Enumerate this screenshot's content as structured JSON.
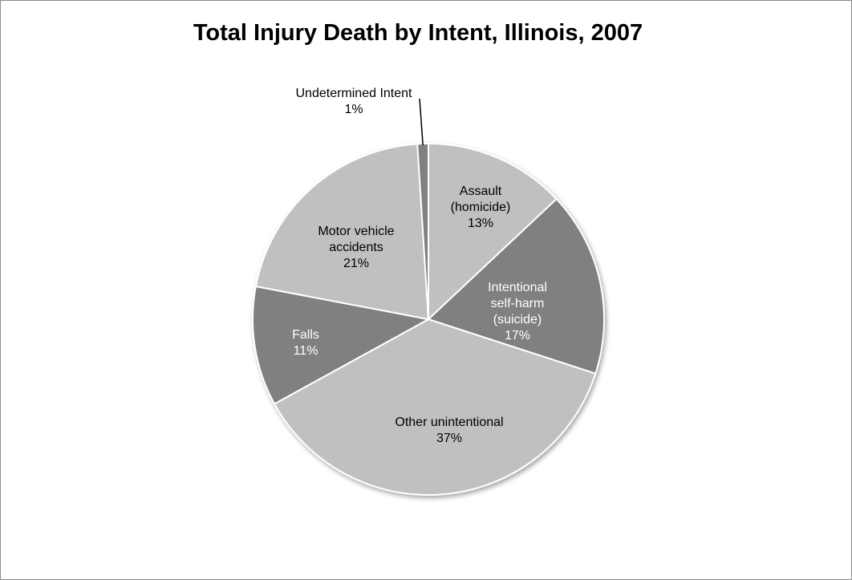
{
  "chart_data": {
    "type": "pie",
    "title": "Total Injury Death by Intent, Illinois, 2007",
    "slices": [
      {
        "label": "Assault (homicide)",
        "percent_label": "13%",
        "value": 13,
        "color": "#c0c0c0",
        "label_color": "#000000"
      },
      {
        "label": "Intentional self-harm (suicide)",
        "percent_label": "17%",
        "value": 17,
        "color": "#808080",
        "label_color": "#ffffff"
      },
      {
        "label": "Other unintentional",
        "percent_label": "37%",
        "value": 37,
        "color": "#c0c0c0",
        "label_color": "#000000"
      },
      {
        "label": "Falls",
        "percent_label": "11%",
        "value": 11,
        "color": "#808080",
        "label_color": "#ffffff"
      },
      {
        "label": "Motor vehicle accidents",
        "percent_label": "21%",
        "value": 21,
        "color": "#c0c0c0",
        "label_color": "#000000"
      },
      {
        "label": "Undetermined Intent",
        "percent_label": "1%",
        "value": 1,
        "color": "#808080",
        "label_color": "#000000"
      }
    ],
    "legend": "none"
  }
}
